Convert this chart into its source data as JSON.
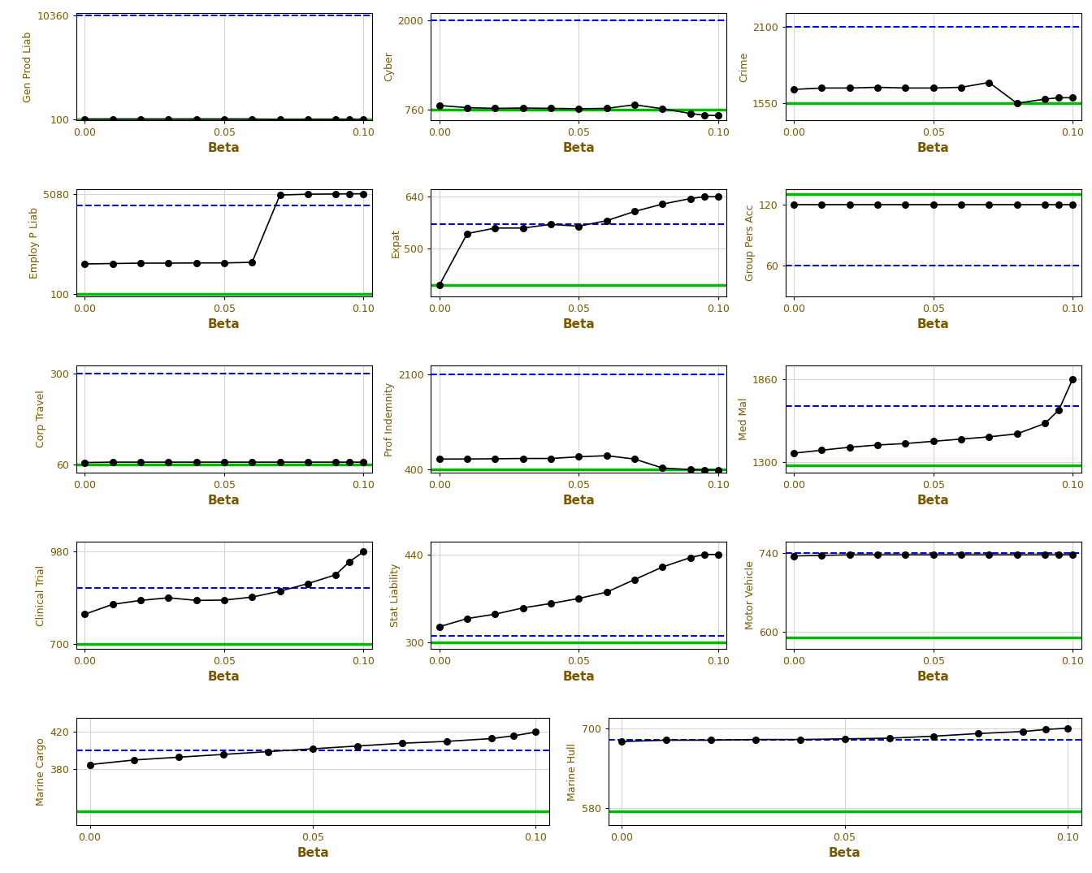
{
  "panels": [
    {
      "title": "Gen Prod Liab",
      "blue_line_y": 10360,
      "green_line_y": 100,
      "y_values": [
        130,
        128,
        130,
        129,
        130,
        130,
        128,
        65,
        95,
        100,
        105,
        108
      ],
      "ylim": [
        40,
        10600
      ],
      "ytick_lo": 100,
      "ytick_hi": 10360,
      "x_values": [
        0.0,
        0.01,
        0.02,
        0.03,
        0.04,
        0.05,
        0.06,
        0.07,
        0.08,
        0.09,
        0.095,
        0.1
      ]
    },
    {
      "title": "Cyber",
      "blue_line_y": 2000,
      "green_line_y": 760,
      "y_values": [
        820,
        790,
        780,
        785,
        780,
        775,
        780,
        830,
        775,
        710,
        685,
        680
      ],
      "ylim": [
        620,
        2100
      ],
      "ytick_lo": 760,
      "ytick_hi": 2000,
      "x_values": [
        0.0,
        0.01,
        0.02,
        0.03,
        0.04,
        0.05,
        0.06,
        0.07,
        0.08,
        0.09,
        0.095,
        0.1
      ]
    },
    {
      "title": "Crime",
      "blue_line_y": 2100,
      "green_line_y": 1550,
      "y_values": [
        1650,
        1660,
        1660,
        1665,
        1660,
        1660,
        1665,
        1700,
        1550,
        1580,
        1590,
        1590
      ],
      "ylim": [
        1430,
        2200
      ],
      "ytick_lo": 1550,
      "ytick_hi": 2100,
      "x_values": [
        0.0,
        0.01,
        0.02,
        0.03,
        0.04,
        0.05,
        0.06,
        0.07,
        0.08,
        0.09,
        0.095,
        0.1
      ]
    },
    {
      "title": "Employ P Liab",
      "blue_line_y": 4500,
      "green_line_y": 100,
      "y_values": [
        1600,
        1620,
        1640,
        1640,
        1650,
        1650,
        1680,
        5020,
        5060,
        5070,
        5080,
        5080
      ],
      "ylim": [
        0,
        5300
      ],
      "ytick_lo": 100,
      "ytick_hi": 5080,
      "x_values": [
        0.0,
        0.01,
        0.02,
        0.03,
        0.04,
        0.05,
        0.06,
        0.07,
        0.08,
        0.09,
        0.095,
        0.1
      ]
    },
    {
      "title": "Expat",
      "blue_line_y": 565,
      "green_line_y": 400,
      "y_values": [
        400,
        540,
        555,
        555,
        565,
        560,
        575,
        600,
        620,
        635,
        640,
        640
      ],
      "ylim": [
        370,
        660
      ],
      "ytick_lo": 500,
      "ytick_hi": 640,
      "x_values": [
        0.0,
        0.01,
        0.02,
        0.03,
        0.04,
        0.05,
        0.06,
        0.07,
        0.08,
        0.09,
        0.095,
        0.1
      ]
    },
    {
      "title": "Group Pers Acc",
      "blue_line_y": 60,
      "green_line_y": 130,
      "y_values": [
        120,
        120,
        120,
        120,
        120,
        120,
        120,
        120,
        120,
        120,
        120,
        120
      ],
      "ylim": [
        30,
        135
      ],
      "ytick_lo": 60,
      "ytick_hi": 120,
      "x_values": [
        0.0,
        0.01,
        0.02,
        0.03,
        0.04,
        0.05,
        0.06,
        0.07,
        0.08,
        0.09,
        0.095,
        0.1
      ]
    },
    {
      "title": "Corp Travel",
      "blue_line_y": 300,
      "green_line_y": 60,
      "y_values": [
        66,
        67,
        67,
        67,
        67,
        67,
        67,
        67,
        67,
        67,
        67,
        67
      ],
      "ylim": [
        40,
        320
      ],
      "ytick_lo": 60,
      "ytick_hi": 300,
      "x_values": [
        0.0,
        0.01,
        0.02,
        0.03,
        0.04,
        0.05,
        0.06,
        0.07,
        0.08,
        0.09,
        0.095,
        0.1
      ]
    },
    {
      "title": "Prof Indemnity",
      "blue_line_y": 2100,
      "green_line_y": 390,
      "y_values": [
        580,
        580,
        585,
        590,
        590,
        620,
        640,
        580,
        420,
        390,
        385,
        385
      ],
      "ylim": [
        340,
        2250
      ],
      "ytick_lo": 400,
      "ytick_hi": 2100,
      "x_values": [
        0.0,
        0.01,
        0.02,
        0.03,
        0.04,
        0.05,
        0.06,
        0.07,
        0.08,
        0.09,
        0.095,
        0.1
      ]
    },
    {
      "title": "Med Mal",
      "blue_line_y": 1680,
      "green_line_y": 1280,
      "y_values": [
        1360,
        1380,
        1400,
        1415,
        1425,
        1440,
        1455,
        1470,
        1490,
        1560,
        1650,
        1860
      ],
      "ylim": [
        1230,
        1950
      ],
      "ytick_lo": 1300,
      "ytick_hi": 1860,
      "x_values": [
        0.0,
        0.01,
        0.02,
        0.03,
        0.04,
        0.05,
        0.06,
        0.07,
        0.08,
        0.09,
        0.095,
        0.1
      ]
    },
    {
      "title": "Clinical Trial",
      "blue_line_y": 870,
      "green_line_y": 700,
      "y_values": [
        790,
        820,
        832,
        840,
        832,
        833,
        842,
        860,
        883,
        910,
        950,
        980
      ],
      "ylim": [
        685,
        1010
      ],
      "ytick_lo": 700,
      "ytick_hi": 980,
      "x_values": [
        0.0,
        0.01,
        0.02,
        0.03,
        0.04,
        0.05,
        0.06,
        0.07,
        0.08,
        0.09,
        0.095,
        0.1
      ]
    },
    {
      "title": "Stat Liability",
      "blue_line_y": 310,
      "green_line_y": 300,
      "y_values": [
        325,
        338,
        345,
        355,
        362,
        370,
        380,
        400,
        420,
        435,
        440,
        440
      ],
      "ylim": [
        290,
        460
      ],
      "ytick_lo": 300,
      "ytick_hi": 440,
      "x_values": [
        0.0,
        0.01,
        0.02,
        0.03,
        0.04,
        0.05,
        0.06,
        0.07,
        0.08,
        0.09,
        0.095,
        0.1
      ]
    },
    {
      "title": "Motor Vehicle",
      "blue_line_y": 740,
      "green_line_y": 590,
      "y_values": [
        735,
        736,
        737,
        737,
        737,
        737,
        737,
        737,
        737,
        737,
        737,
        737
      ],
      "ylim": [
        570,
        760
      ],
      "ytick_lo": 600,
      "ytick_hi": 740,
      "x_values": [
        0.0,
        0.01,
        0.02,
        0.03,
        0.04,
        0.05,
        0.06,
        0.07,
        0.08,
        0.09,
        0.095,
        0.1
      ]
    },
    {
      "title": "Marine Cargo",
      "blue_line_y": 400,
      "green_line_y": 335,
      "y_values": [
        385,
        390,
        393,
        396,
        399,
        402,
        405,
        408,
        410,
        413,
        416,
        420
      ],
      "ylim": [
        320,
        435
      ],
      "ytick_lo": 380,
      "ytick_hi": 420,
      "x_values": [
        0.0,
        0.01,
        0.02,
        0.03,
        0.04,
        0.05,
        0.06,
        0.07,
        0.08,
        0.09,
        0.095,
        0.1
      ]
    },
    {
      "title": "Marine Hull",
      "blue_line_y": 682,
      "green_line_y": 575,
      "y_values": [
        680,
        682,
        682,
        683,
        683,
        684,
        685,
        688,
        692,
        695,
        698,
        700
      ],
      "ylim": [
        555,
        715
      ],
      "ytick_lo": 580,
      "ytick_hi": 700,
      "x_values": [
        0.0,
        0.01,
        0.02,
        0.03,
        0.04,
        0.05,
        0.06,
        0.07,
        0.08,
        0.09,
        0.095,
        0.1
      ]
    }
  ],
  "xticks": [
    0.0,
    0.05,
    0.1
  ],
  "xlabel": "Beta",
  "bg_color": "#ffffff",
  "line_color": "#000000",
  "blue_dashed_color": "#0000ee",
  "green_line_color": "#00bb00",
  "ylabel_color": "#7B5800",
  "xlabel_color": "#7B5800",
  "tick_color": "#7B5800",
  "grid_color": "#cccccc",
  "dot_size": 5.5
}
